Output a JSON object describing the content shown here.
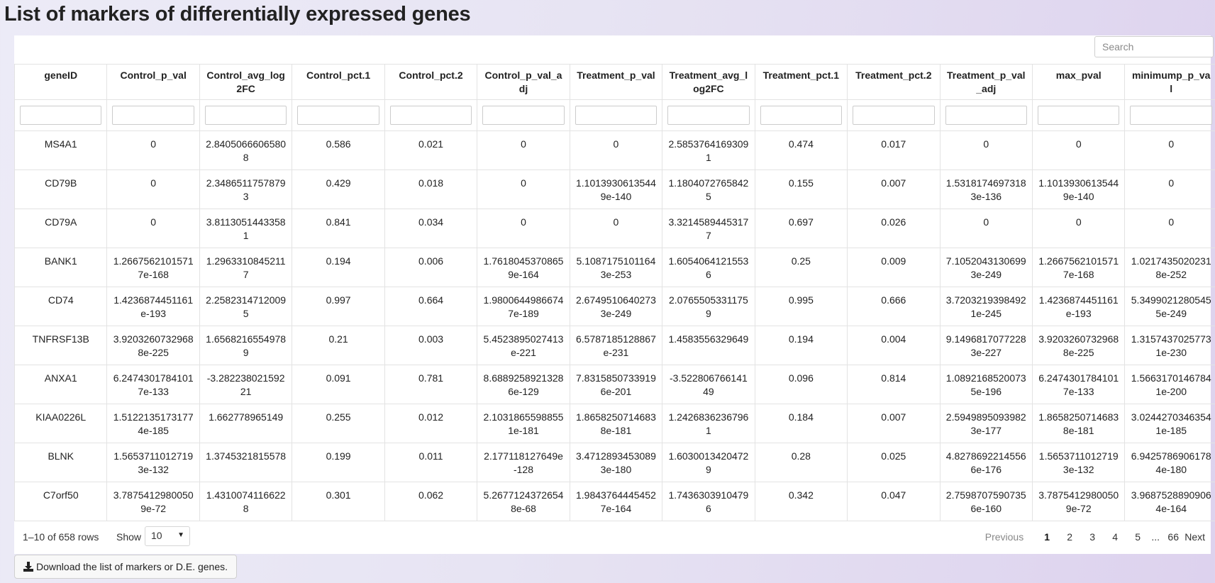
{
  "page": {
    "title": "List of markers of differentially expressed genes"
  },
  "search": {
    "placeholder": "Search"
  },
  "table": {
    "columns": [
      "geneID",
      "Control_p_val",
      "Control_avg_log2FC",
      "Control_pct.1",
      "Control_pct.2",
      "Control_p_val_adj",
      "Treatment_p_val",
      "Treatment_avg_log2FC",
      "Treatment_pct.1",
      "Treatment_pct.2",
      "Treatment_p_val_adj",
      "max_pval",
      "minimump_p_val"
    ],
    "rows": [
      [
        "MS4A1",
        "0",
        "2.84050666065808",
        "0.586",
        "0.021",
        "0",
        "0",
        "2.58537641693091",
        "0.474",
        "0.017",
        "0",
        "0",
        "0"
      ],
      [
        "CD79B",
        "0",
        "2.34865117578793",
        "0.429",
        "0.018",
        "0",
        "1.10139306135449e-140",
        "1.18040727658425",
        "0.155",
        "0.007",
        "1.53181746973183e-136",
        "1.10139306135449e-140",
        "0"
      ],
      [
        "CD79A",
        "0",
        "3.81130514433581",
        "0.841",
        "0.034",
        "0",
        "0",
        "3.32145894453177",
        "0.697",
        "0.026",
        "0",
        "0",
        "0"
      ],
      [
        "BANK1",
        "1.26675621015717e-168",
        "1.29633108452117",
        "0.194",
        "0.006",
        "1.76180453708659e-164",
        "5.10871751011643e-253",
        "1.60540641215536",
        "0.25",
        "0.009",
        "7.10520431306993e-249",
        "1.26675621015717e-168",
        "1.02174350202318e-252"
      ],
      [
        "CD74",
        "1.4236874451161e-193",
        "2.25823147120095",
        "0.997",
        "0.664",
        "1.98006449866747e-189",
        "2.67495106402733e-249",
        "2.07655053311759",
        "0.995",
        "0.666",
        "3.72032193984921e-245",
        "1.4236874451161e-193",
        "5.34990212805455e-249"
      ],
      [
        "TNFRSF13B",
        "3.92032607329688e-225",
        "1.65682165549789",
        "0.21",
        "0.003",
        "5.4523895027413e-221",
        "6.5787185128867e-231",
        "1.4583556329649",
        "0.194",
        "0.004",
        "9.14968170772283e-227",
        "3.92032607329688e-225",
        "1.31574370257731e-230"
      ],
      [
        "ANXA1",
        "6.24743017841017e-133",
        "-3.28223802159221",
        "0.091",
        "0.781",
        "8.68892589213286e-129",
        "7.83158507339196e-201",
        "-3.52280676614149",
        "0.096",
        "0.814",
        "1.08921685200735e-196",
        "6.24743017841017e-133",
        "1.56631701467841e-200"
      ],
      [
        "KIAA0226L",
        "1.51221351731774e-185",
        "1.662778965149",
        "0.255",
        "0.012",
        "2.10318655988551e-181",
        "1.86582507146838e-181",
        "1.24268362367961",
        "0.184",
        "0.007",
        "2.59498950939823e-177",
        "1.86582507146838e-181",
        "3.02442703463541e-185"
      ],
      [
        "BLNK",
        "1.56537110127193e-132",
        "1.3745321815578",
        "0.199",
        "0.011",
        "2.177118127649e-128",
        "3.47128934530893e-180",
        "1.60300134204729",
        "0.28",
        "0.025",
        "4.82786922145566e-176",
        "1.56537110127193e-132",
        "6.94257869061784e-180"
      ],
      [
        "C7orf50",
        "3.78754129800509e-72",
        "1.43100741166228",
        "0.301",
        "0.062",
        "5.26771243726548e-68",
        "1.98437644454527e-164",
        "1.74363039104796",
        "0.342",
        "0.047",
        "2.75987075907356e-160",
        "3.78754129800509e-72",
        "3.96875288909064e-164"
      ]
    ]
  },
  "footer": {
    "rows_info": "1–10 of 658 rows",
    "show_label": "Show",
    "page_length": "10",
    "pagination": {
      "previous": "Previous",
      "pages": [
        "1",
        "2",
        "3",
        "4",
        "5"
      ],
      "ellipsis": "...",
      "last": "66",
      "next": "Next",
      "active": "1"
    }
  },
  "download": {
    "label": "Download the list of markers or D.E. genes.",
    "icon": "download-icon"
  }
}
